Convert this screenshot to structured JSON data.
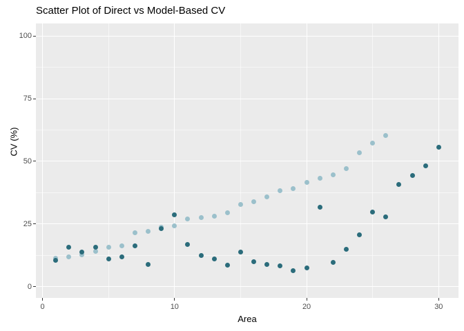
{
  "title": "Scatter Plot of Direct vs Model-Based CV",
  "panel": {
    "bg": "#EBEBEB",
    "grid_color": "#FFFFFF",
    "tick_color": "#333333",
    "tick_label_color": "#4D4D4D"
  },
  "chart_data": {
    "type": "scatter",
    "title": "Scatter Plot of Direct vs Model-Based CV",
    "xlabel": "Area",
    "ylabel": "CV (%)",
    "x_ticks": [
      0,
      10,
      20,
      30
    ],
    "y_ticks": [
      0,
      25,
      50,
      75,
      100
    ],
    "x_minor_ticks": [
      5,
      15,
      25
    ],
    "y_minor_ticks": [
      12.5,
      37.5,
      62.5,
      87.5
    ],
    "x_view_range": [
      -0.5,
      31.5
    ],
    "y_view_range": [
      -4.5,
      105
    ],
    "grid": "on",
    "legend": "none",
    "series": [
      {
        "name": "light-blue-series",
        "color": "#9BC0CB",
        "points": [
          [
            1,
            11.3
          ],
          [
            2,
            11.9
          ],
          [
            3,
            12.6
          ],
          [
            4,
            14.2
          ],
          [
            5,
            15.6
          ],
          [
            6,
            16.4
          ],
          [
            7,
            21.4
          ],
          [
            8,
            22.1
          ],
          [
            9,
            23.8
          ],
          [
            10,
            24.3
          ],
          [
            11,
            27.1
          ],
          [
            12,
            27.5
          ],
          [
            13,
            28.0
          ],
          [
            14,
            29.6
          ],
          [
            15,
            32.8
          ],
          [
            16,
            34.0
          ],
          [
            17,
            35.8
          ],
          [
            18,
            38.3
          ],
          [
            19,
            39.2
          ],
          [
            20,
            41.6
          ],
          [
            21,
            43.3
          ],
          [
            22,
            44.5
          ],
          [
            23,
            47.2
          ],
          [
            24,
            53.3
          ],
          [
            25,
            57.2
          ],
          [
            26,
            60.4
          ]
        ]
      },
      {
        "name": "dark-teal-series",
        "color": "#2B6C7B",
        "points": [
          [
            1,
            10.4
          ],
          [
            2,
            15.6
          ],
          [
            3,
            13.7
          ],
          [
            4,
            15.6
          ],
          [
            5,
            11.0
          ],
          [
            6,
            11.8
          ],
          [
            7,
            16.3
          ],
          [
            8,
            8.8
          ],
          [
            9,
            23.1
          ],
          [
            10,
            28.6
          ],
          [
            11,
            16.7
          ],
          [
            12,
            12.4
          ],
          [
            13,
            11.1
          ],
          [
            14,
            8.5
          ],
          [
            15,
            13.8
          ],
          [
            16,
            10.0
          ],
          [
            17,
            8.8
          ],
          [
            18,
            8.3
          ],
          [
            19,
            6.5
          ],
          [
            20,
            7.4
          ],
          [
            21,
            31.6
          ],
          [
            22,
            9.7
          ],
          [
            23,
            14.9
          ],
          [
            24,
            20.8
          ],
          [
            25,
            29.8
          ],
          [
            26,
            27.9
          ],
          [
            27,
            40.8
          ],
          [
            28,
            44.4
          ],
          [
            29,
            48.1
          ],
          [
            30,
            55.6
          ]
        ]
      }
    ]
  }
}
